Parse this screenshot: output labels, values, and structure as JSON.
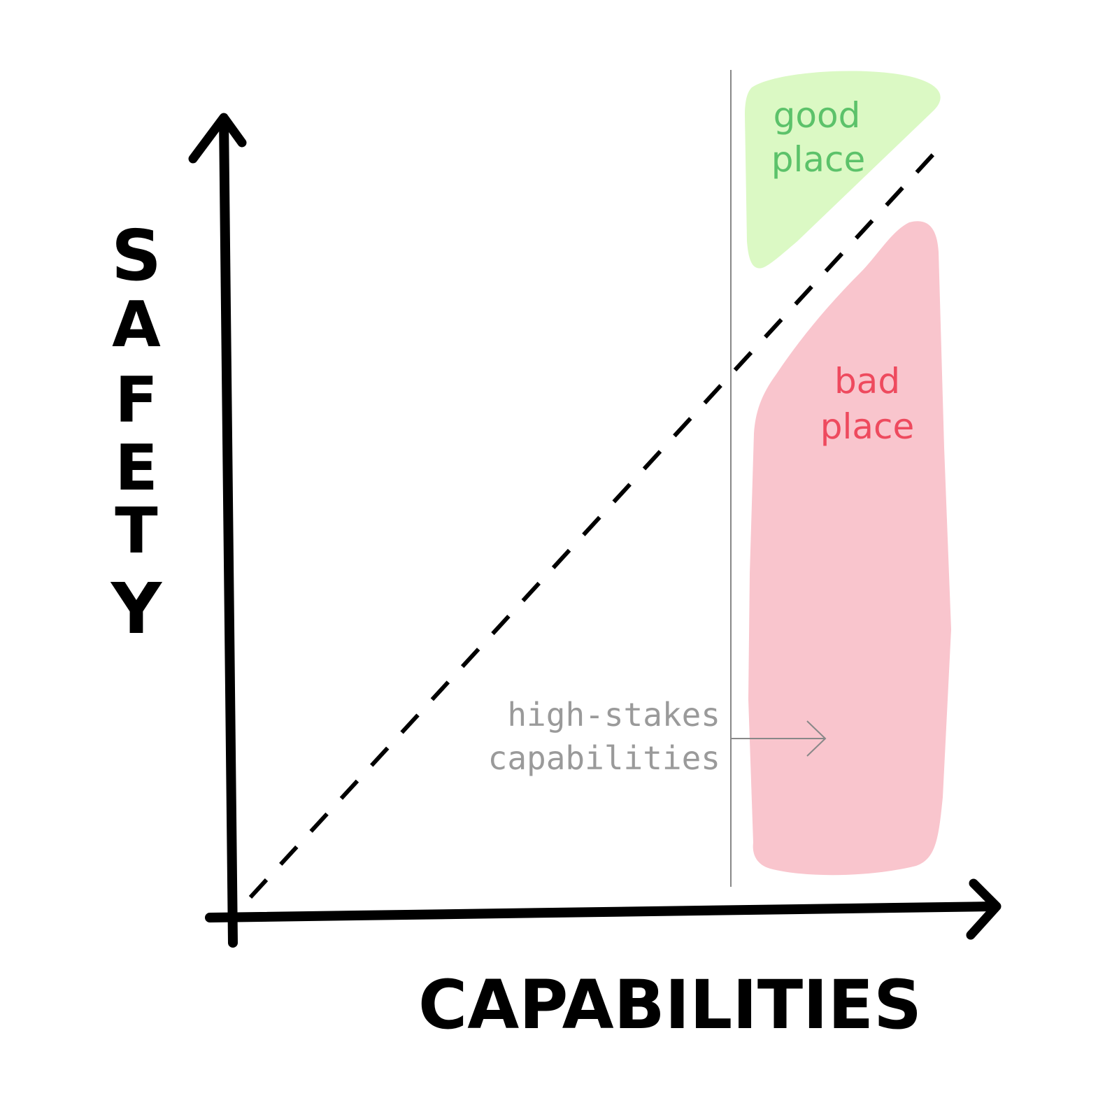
{
  "x_axis": {
    "label": "CAPABILITIES"
  },
  "y_axis": {
    "label_letters": [
      "S",
      "A",
      "F",
      "E",
      "T",
      "Y"
    ]
  },
  "regions": {
    "good": {
      "line1": "good",
      "line2": "place",
      "fill_color": "#dbf9c4",
      "text_color": "#5cc26a"
    },
    "bad": {
      "line1": "bad",
      "line2": "place",
      "fill_color": "#f9c5cd",
      "text_color": "#ee4a5e"
    }
  },
  "threshold": {
    "line1": "high-stakes",
    "line2": "capabilities",
    "text_color": "#9a9a9a",
    "line_color": "#888888"
  },
  "colors": {
    "axis": "#000000",
    "trend_line": "#000000",
    "background": "#ffffff"
  }
}
